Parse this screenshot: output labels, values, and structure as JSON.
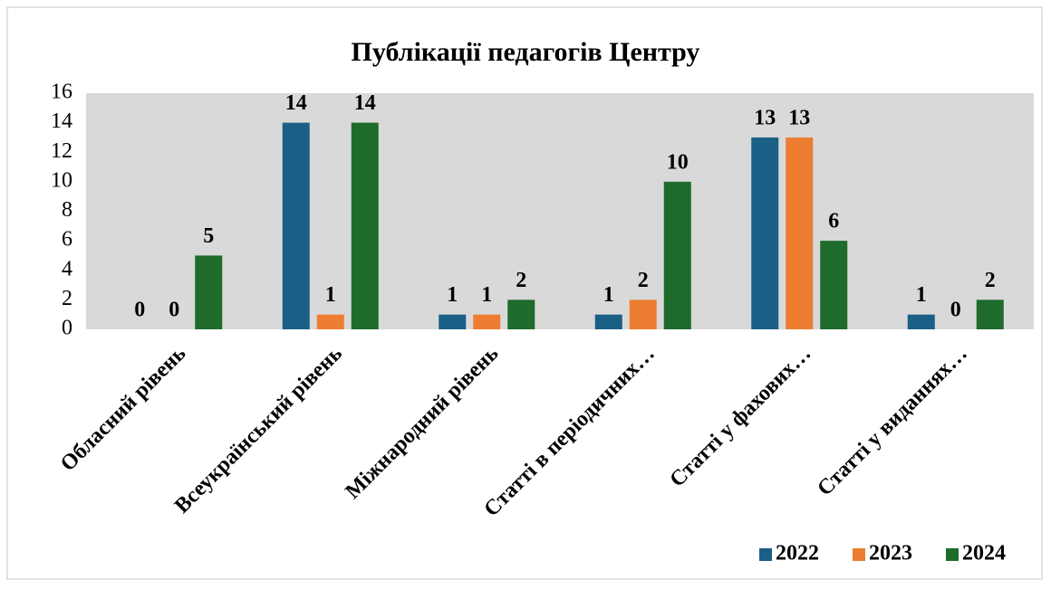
{
  "chart_data": {
    "type": "bar",
    "title": "Публікації педагогів Центру",
    "categories": [
      "Обласний рівень",
      "Всеукраїнський рівень",
      "Міжнародний рівень",
      "Статті в періодичних…",
      "Статті у фахових…",
      "Статті у виданнях…"
    ],
    "series": [
      {
        "name": "2022",
        "color": "#1a5f85",
        "values": [
          0,
          14,
          1,
          1,
          13,
          1
        ]
      },
      {
        "name": "2023",
        "color": "#ed7d31",
        "values": [
          0,
          1,
          1,
          2,
          13,
          0
        ]
      },
      {
        "name": "2024",
        "color": "#1e6b2b",
        "values": [
          5,
          14,
          2,
          10,
          6,
          2
        ]
      }
    ],
    "ylim": [
      0,
      16
    ],
    "yticks": [
      0,
      2,
      4,
      6,
      8,
      10,
      12,
      14,
      16
    ],
    "legend": "bottom-right",
    "plot_background": "#d9d9d9"
  }
}
